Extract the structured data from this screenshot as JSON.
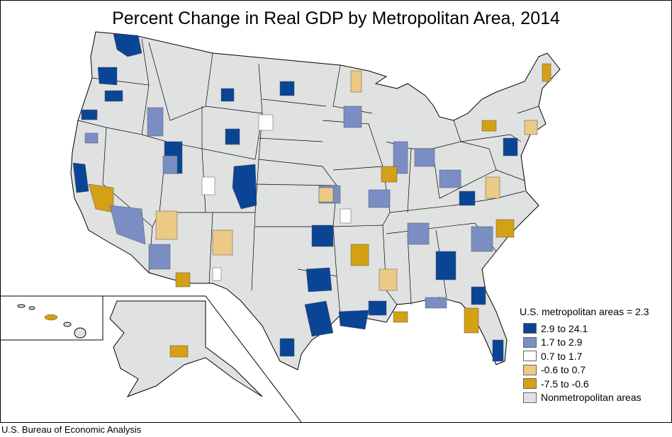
{
  "title": "Percent Change in Real GDP by Metropolitan Area, 2014",
  "source": "U.S. Bureau of Economic Analysis",
  "legend": {
    "heading": "U.S. metropolitan areas = 2.3",
    "items": [
      {
        "label": "2.9 to 24.1",
        "color": "#0a4595"
      },
      {
        "label": "1.7 to 2.9",
        "color": "#7a8ec4"
      },
      {
        "label": "0.7 to 1.7",
        "color": "#ffffff"
      },
      {
        "label": "-0.6 to 0.7",
        "color": "#ecca85"
      },
      {
        "label": "-7.5 to -0.6",
        "color": "#d4a114"
      },
      {
        "label": "Nonmetropolitan areas",
        "color": "#e0e1e1"
      }
    ]
  }
}
